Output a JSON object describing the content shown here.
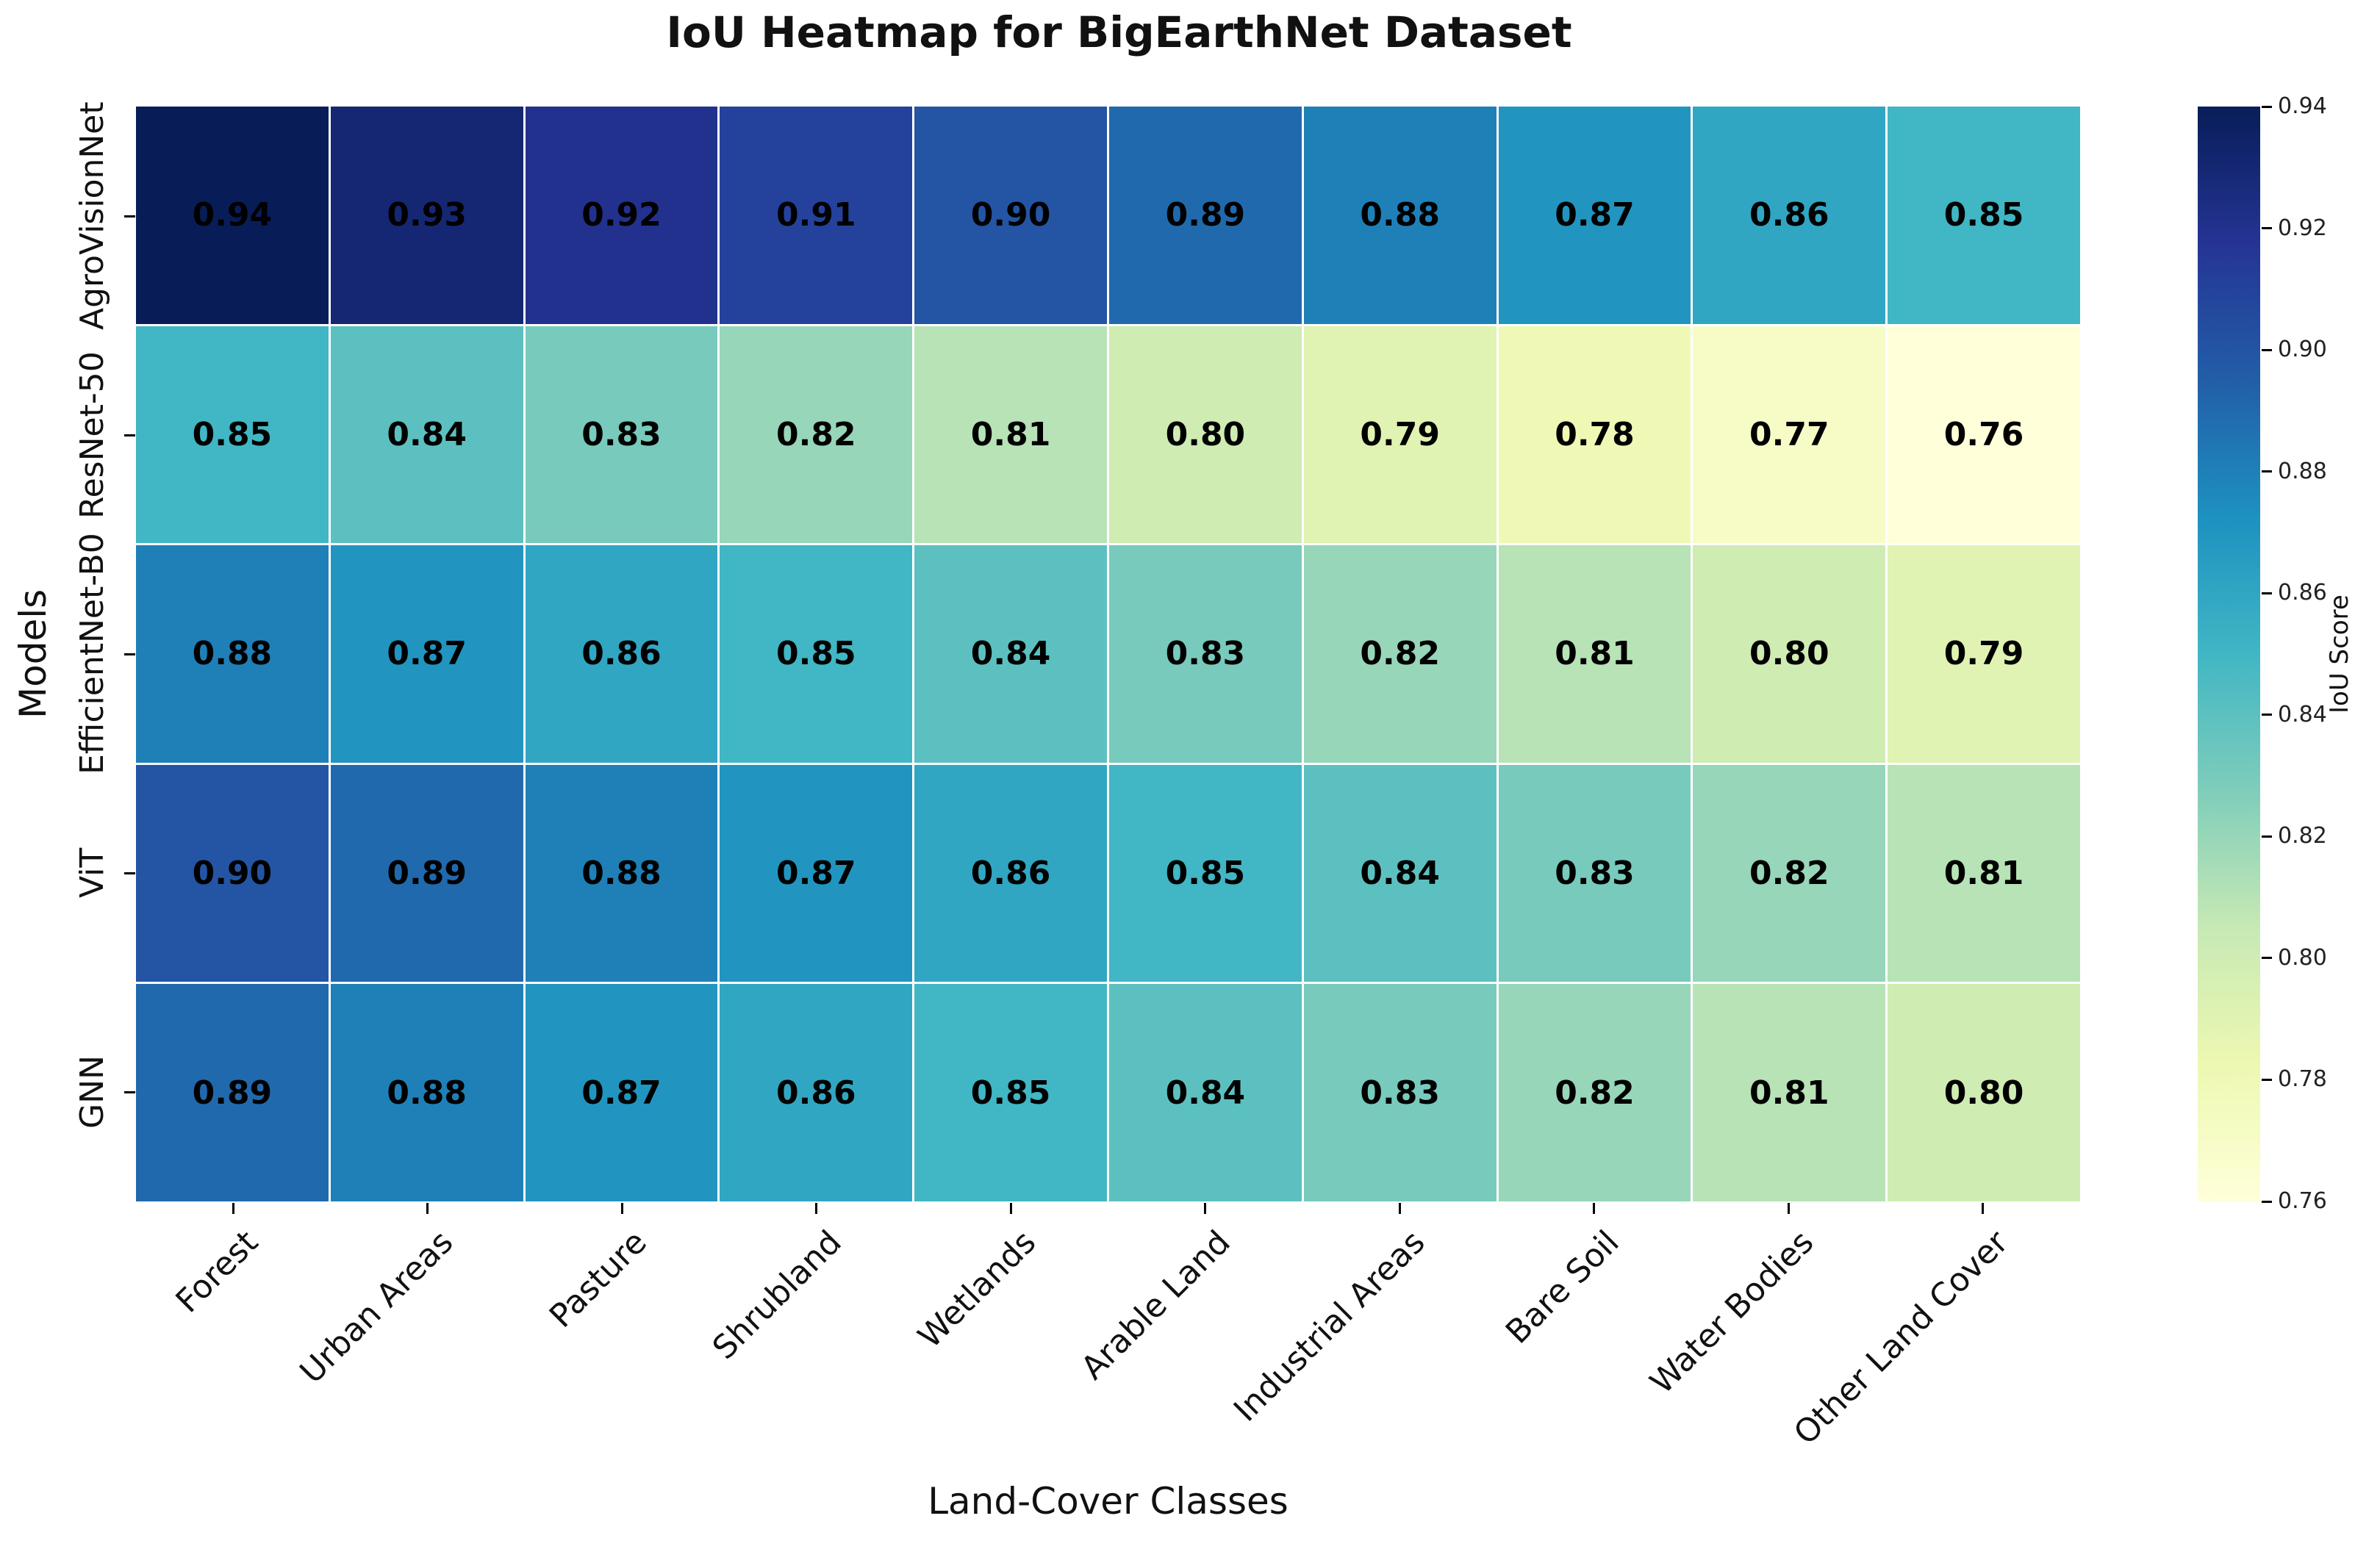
{
  "chart_data": {
    "type": "heatmap",
    "title": "IoU Heatmap for BigEarthNet Dataset",
    "xlabel": "Land-Cover Classes",
    "ylabel": "Models",
    "x_categories": [
      "Forest",
      "Urban Areas",
      "Pasture",
      "Shrubland",
      "Wetlands",
      "Arable Land",
      "Industrial Areas",
      "Bare Soil",
      "Water Bodies",
      "Other Land Cover"
    ],
    "y_categories": [
      "AgroVisionNet",
      "ResNet-50",
      "EfficientNet-B0",
      "ViT",
      "GNN"
    ],
    "series": [
      {
        "name": "AgroVisionNet",
        "values": [
          0.94,
          0.93,
          0.92,
          0.91,
          0.9,
          0.89,
          0.88,
          0.87,
          0.86,
          0.85
        ]
      },
      {
        "name": "ResNet-50",
        "values": [
          0.85,
          0.84,
          0.83,
          0.82,
          0.81,
          0.8,
          0.79,
          0.78,
          0.77,
          0.76
        ]
      },
      {
        "name": "EfficientNet-B0",
        "values": [
          0.88,
          0.87,
          0.86,
          0.85,
          0.84,
          0.83,
          0.82,
          0.81,
          0.8,
          0.79
        ]
      },
      {
        "name": "ViT",
        "values": [
          0.9,
          0.89,
          0.88,
          0.87,
          0.86,
          0.85,
          0.84,
          0.83,
          0.82,
          0.81
        ]
      },
      {
        "name": "GNN",
        "values": [
          0.89,
          0.88,
          0.87,
          0.86,
          0.85,
          0.84,
          0.83,
          0.82,
          0.81,
          0.8
        ]
      }
    ],
    "annotations": true,
    "annotation_decimals": 2,
    "colorbar": {
      "label": "IoU Score",
      "min": 0.76,
      "max": 0.94,
      "tick_labels": [
        "0.94",
        "0.92",
        "0.90",
        "0.88",
        "0.86",
        "0.84",
        "0.82",
        "0.80",
        "0.78",
        "0.76"
      ]
    },
    "colormap": {
      "name": "YlGnBu",
      "stops": [
        "#ffffd9",
        "#edf8b1",
        "#c7e9b4",
        "#7fcdbb",
        "#41b6c4",
        "#1d91c0",
        "#225ea8",
        "#253494",
        "#081d58"
      ]
    },
    "cell_text_color": "#000000",
    "gridline_color": "#ffffff",
    "legend_position": "right-colorbar",
    "grid": false
  }
}
